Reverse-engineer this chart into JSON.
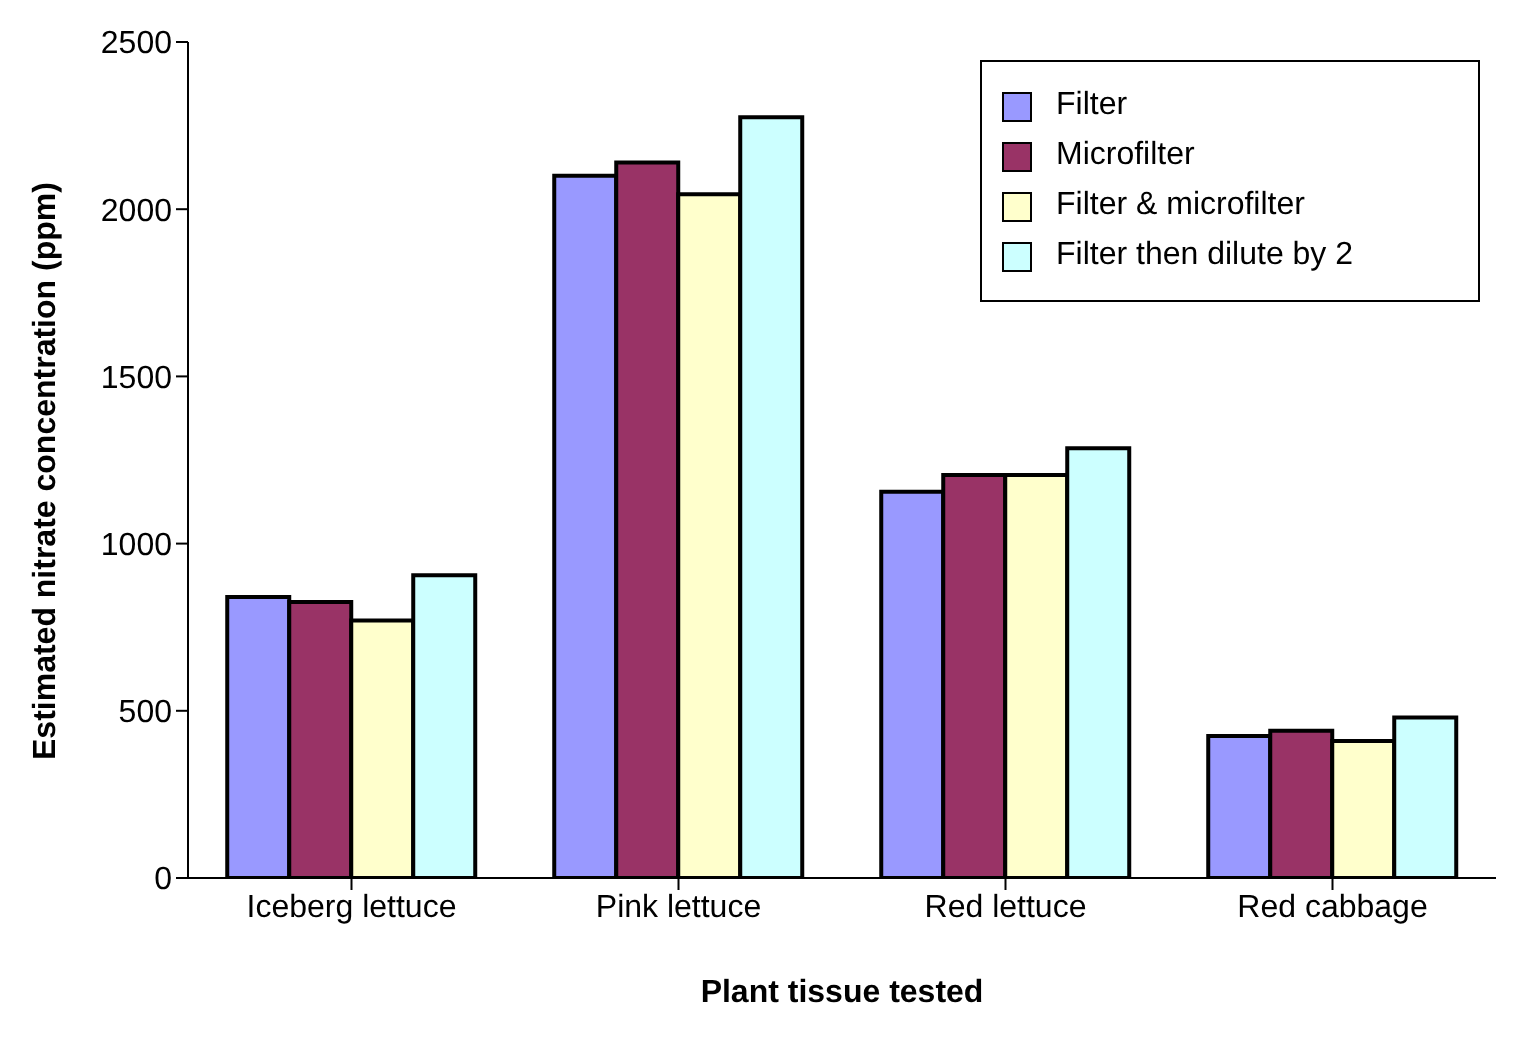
{
  "chart_data": {
    "type": "bar",
    "xlabel": "Plant tissue tested",
    "ylabel": "Estimated nitrate concentration (ppm)",
    "categories": [
      "Iceberg lettuce",
      "Pink lettuce",
      "Red lettuce",
      "Red cabbage"
    ],
    "series": [
      {
        "name": "Filter",
        "color": "#9999ff",
        "values": [
          840,
          2100,
          1155,
          425
        ]
      },
      {
        "name": "Microfilter",
        "color": "#993366",
        "values": [
          825,
          2140,
          1205,
          440
        ]
      },
      {
        "name": "Filter & microfilter",
        "color": "#ffffcc",
        "values": [
          770,
          2045,
          1205,
          410
        ]
      },
      {
        "name": "Filter then dilute by 2",
        "color": "#ccffff",
        "values": [
          905,
          2275,
          1285,
          480
        ]
      }
    ],
    "ylim": [
      0,
      2500
    ],
    "yticks": [
      0,
      500,
      1000,
      1500,
      2000,
      2500
    ],
    "grid": false,
    "legend": "top right"
  }
}
